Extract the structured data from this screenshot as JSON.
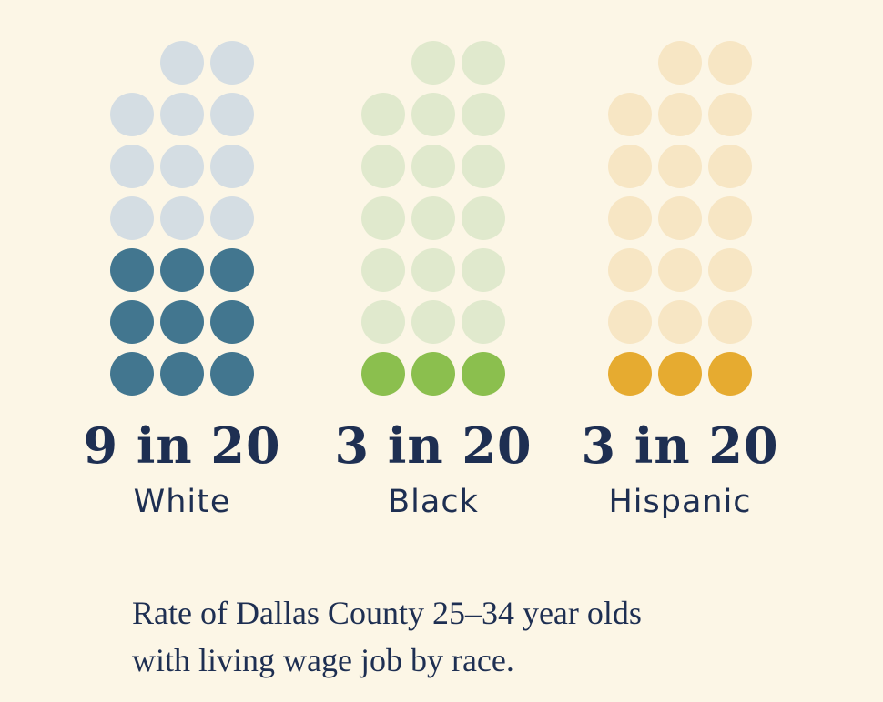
{
  "chart_data": {
    "type": "pictogram",
    "total_per_group": 20,
    "groups": [
      {
        "name": "White",
        "stat": "9 in 20",
        "value": 9,
        "colors": {
          "filled": "#42768f",
          "empty": "#d4dde3"
        }
      },
      {
        "name": "Black",
        "stat": "3 in 20",
        "value": 3,
        "colors": {
          "filled": "#8bbf4e",
          "empty": "#e0e9cd"
        }
      },
      {
        "name": "Hispanic",
        "stat": "3 in 20",
        "value": 3,
        "colors": {
          "filled": "#e6ab30",
          "empty": "#f7e6c4"
        }
      }
    ],
    "caption_lines": [
      "Rate of Dallas County 25–34 year olds",
      "with living wage job by race."
    ]
  },
  "colors": {
    "background": "#fcf6e6",
    "text": "#1e2f52"
  }
}
